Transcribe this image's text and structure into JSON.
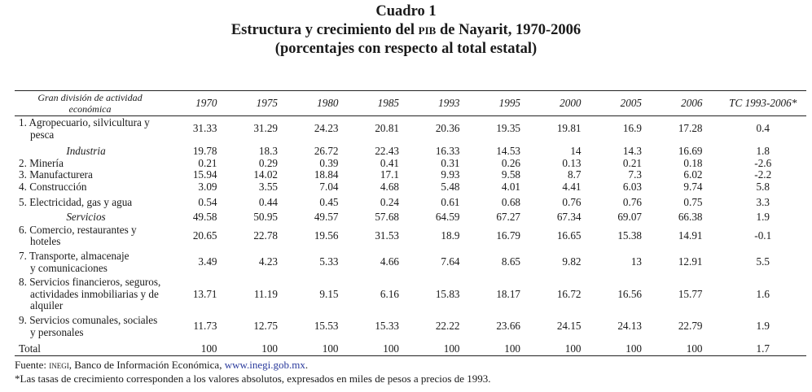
{
  "title": {
    "line1": "Cuadro 1",
    "line2_pre": "Estructura y crecimiento del ",
    "line2_abbr": "PIB",
    "line2_post": " de Nayarit, 1970-2006",
    "line3": "(porcentajes con respecto al total estatal)"
  },
  "table": {
    "header": {
      "label_line1": "Gran división de actividad",
      "label_line2": "económica",
      "columns": [
        "1970",
        "1975",
        "1980",
        "1985",
        "1993",
        "1995",
        "2000",
        "2005",
        "2006"
      ],
      "tc": "TC 1993-2006*"
    },
    "rows": [
      {
        "label": "1. Agropecuario, silvicultura y",
        "label2": "pesca",
        "values": [
          "31.33",
          "31.29",
          "24.23",
          "20.81",
          "20.36",
          "19.35",
          "19.81",
          "16.9",
          "17.28"
        ],
        "tc": "0.4"
      },
      {
        "label": "Industria",
        "group": true,
        "values": [
          "19.78",
          "18.3",
          "26.72",
          "22.43",
          "16.33",
          "14.53",
          "14",
          "14.3",
          "16.69"
        ],
        "tc": "1.8"
      },
      {
        "label": "2. Minería",
        "values": [
          "0.21",
          "0.29",
          "0.39",
          "0.41",
          "0.31",
          "0.26",
          "0.13",
          "0.21",
          "0.18"
        ],
        "tc": "-2.6"
      },
      {
        "label": "3. Manufacturera",
        "values": [
          "15.94",
          "14.02",
          "18.84",
          "17.1",
          "9.93",
          "9.58",
          "8.7",
          "7.3",
          "6.02"
        ],
        "tc": "-2.2"
      },
      {
        "label": "4. Construcción",
        "values": [
          "3.09",
          "3.55",
          "7.04",
          "4.68",
          "5.48",
          "4.01",
          "4.41",
          "6.03",
          "9.74"
        ],
        "tc": "5.8"
      },
      {
        "label": "5. Electricidad, gas y agua",
        "values": [
          "0.54",
          "0.44",
          "0.45",
          "0.24",
          "0.61",
          "0.68",
          "0.76",
          "0.76",
          "0.75"
        ],
        "tc": "3.3"
      },
      {
        "label": "Servicios",
        "group": true,
        "values": [
          "49.58",
          "50.95",
          "49.57",
          "57.68",
          "64.59",
          "67.27",
          "67.34",
          "69.07",
          "66.38"
        ],
        "tc": "1.9"
      },
      {
        "label": "6. Comercio, restaurantes y",
        "label2": "hoteles",
        "values": [
          "20.65",
          "22.78",
          "19.56",
          "31.53",
          "18.9",
          "16.79",
          "16.65",
          "15.38",
          "14.91"
        ],
        "tc": "-0.1"
      },
      {
        "label": "7. Transporte, almacenaje",
        "label2": "y comunicaciones",
        "values": [
          "3.49",
          "4.23",
          "5.33",
          "4.66",
          "7.64",
          "8.65",
          "9.82",
          "13",
          "12.91"
        ],
        "tc": "5.5"
      },
      {
        "label": "8. Servicios financieros, seguros,",
        "label2": "actividades inmobiliarias y de",
        "label3": "alquiler",
        "values": [
          "13.71",
          "11.19",
          "9.15",
          "6.16",
          "15.83",
          "18.17",
          "16.72",
          "16.56",
          "15.77"
        ],
        "tc": "1.6"
      },
      {
        "label": "9. Servicios comunales, sociales",
        "label2": "y personales",
        "values": [
          "11.73",
          "12.75",
          "15.53",
          "15.33",
          "22.22",
          "23.66",
          "24.15",
          "24.13",
          "22.79"
        ],
        "tc": "1.9"
      },
      {
        "label": "Total",
        "values": [
          "100",
          "100",
          "100",
          "100",
          "100",
          "100",
          "100",
          "100",
          "100"
        ],
        "tc": "1.7"
      }
    ]
  },
  "footer": {
    "source_pre": "Fuente: ",
    "source_abbr": "INEGI",
    "source_mid": ", Banco de Información Económica, ",
    "source_link": "www.inegi.gob.mx",
    "source_end": ".",
    "note": "*Las tasas de crecimiento corresponden a los valores absolutos, expresados en miles de pesos a precios de 1993."
  }
}
